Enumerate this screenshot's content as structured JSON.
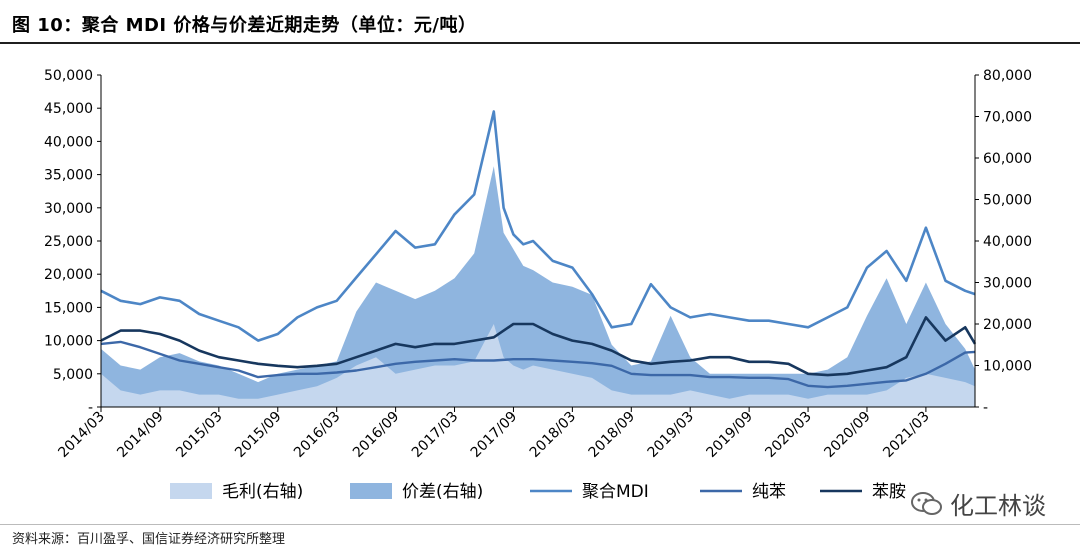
{
  "header": {
    "title": "图 10：聚合 MDI 价格与价差近期走势（单位：元/吨）"
  },
  "footer": {
    "source": "资料来源：百川盈孚、国信证券经济研究所整理",
    "watermark": "化工林谈"
  },
  "chart_data": {
    "type": "line",
    "left_axis": {
      "ticks": [
        "-",
        "5,000",
        "10,000",
        "15,000",
        "20,000",
        "25,000",
        "30,000",
        "35,000",
        "40,000",
        "45,000",
        "50,000"
      ],
      "ylim": [
        0,
        50000
      ]
    },
    "right_axis": {
      "ticks": [
        "-",
        "10,000",
        "20,000",
        "30,000",
        "40,000",
        "50,000",
        "60,000",
        "70,000",
        "80,000"
      ],
      "ylim": [
        0,
        80000
      ]
    },
    "x_ticks": [
      "2014/03",
      "2014/09",
      "2015/03",
      "2015/09",
      "2016/03",
      "2016/09",
      "2017/03",
      "2017/09",
      "2018/03",
      "2018/09",
      "2019/03",
      "2019/09",
      "2020/03",
      "2020/09",
      "2021/03"
    ],
    "x_range_months": [
      0,
      89
    ],
    "legend": [
      "毛利(右轴)",
      "价差(右轴)",
      "聚合MDI",
      "纯苯",
      "苯胺"
    ],
    "colors": {
      "毛利": "#c5d7ee",
      "价差": "#8fb5df",
      "聚合MDI": "#4d86c6",
      "纯苯": "#3c68a8",
      "苯胺": "#17375e"
    },
    "series": [
      {
        "name": "毛利(右轴)",
        "axis": "right",
        "type": "area",
        "x": [
          0,
          2,
          4,
          6,
          8,
          10,
          12,
          14,
          16,
          18,
          20,
          22,
          24,
          26,
          28,
          30,
          32,
          34,
          36,
          38,
          40,
          41,
          42,
          43,
          44,
          46,
          48,
          50,
          52,
          54,
          56,
          58,
          60,
          62,
          64,
          66,
          68,
          70,
          72,
          74,
          76,
          78,
          80,
          82,
          84,
          86,
          88,
          89
        ],
        "values": [
          8000,
          4000,
          3000,
          4000,
          4000,
          3000,
          3000,
          2000,
          2000,
          3000,
          4000,
          5000,
          7000,
          10000,
          12000,
          8000,
          9000,
          10000,
          10000,
          11000,
          20000,
          12000,
          10000,
          9000,
          10000,
          9000,
          8000,
          7000,
          4000,
          3000,
          3000,
          3000,
          4000,
          3000,
          2000,
          3000,
          3000,
          3000,
          2000,
          3000,
          3000,
          3000,
          4000,
          7000,
          8000,
          7000,
          6000,
          5000
        ]
      },
      {
        "name": "价差(右轴)",
        "axis": "right",
        "type": "area",
        "x": [
          0,
          2,
          4,
          6,
          8,
          10,
          12,
          14,
          16,
          18,
          20,
          22,
          24,
          26,
          28,
          30,
          32,
          34,
          36,
          38,
          40,
          41,
          42,
          43,
          44,
          46,
          48,
          50,
          52,
          54,
          56,
          58,
          60,
          62,
          64,
          66,
          68,
          70,
          72,
          74,
          76,
          78,
          80,
          82,
          84,
          86,
          88,
          89
        ],
        "values": [
          14000,
          10000,
          9000,
          12000,
          13000,
          11000,
          10000,
          8000,
          6000,
          8000,
          9000,
          10000,
          11000,
          23000,
          30000,
          28000,
          26000,
          28000,
          31000,
          37000,
          58000,
          42000,
          38000,
          34000,
          33000,
          30000,
          29000,
          27000,
          15000,
          10000,
          11000,
          22000,
          12000,
          8000,
          8000,
          8000,
          8000,
          8000,
          8000,
          9000,
          12000,
          22000,
          31000,
          20000,
          30000,
          20000,
          14000,
          9000
        ]
      },
      {
        "name": "聚合MDI",
        "axis": "left",
        "x": [
          0,
          2,
          4,
          6,
          8,
          10,
          12,
          14,
          16,
          18,
          20,
          22,
          24,
          26,
          28,
          30,
          32,
          34,
          36,
          38,
          40,
          41,
          42,
          43,
          44,
          46,
          48,
          50,
          52,
          54,
          56,
          58,
          60,
          62,
          64,
          66,
          68,
          70,
          72,
          74,
          76,
          78,
          80,
          82,
          84,
          86,
          88,
          89
        ],
        "values": [
          17500,
          16000,
          15500,
          16500,
          16000,
          14000,
          13000,
          12000,
          10000,
          11000,
          13500,
          15000,
          16000,
          19500,
          23000,
          26500,
          24000,
          24500,
          29000,
          32000,
          44500,
          30000,
          26000,
          24500,
          25000,
          22000,
          21000,
          17000,
          12000,
          12500,
          18500,
          15000,
          13500,
          14000,
          13500,
          13000,
          13000,
          12500,
          12000,
          13500,
          15000,
          21000,
          23500,
          19000,
          27000,
          19000,
          17500,
          17000
        ]
      },
      {
        "name": "纯苯",
        "axis": "left",
        "x": [
          0,
          2,
          4,
          6,
          8,
          10,
          12,
          14,
          16,
          18,
          20,
          22,
          24,
          26,
          28,
          30,
          32,
          34,
          36,
          38,
          40,
          42,
          44,
          46,
          48,
          50,
          52,
          54,
          56,
          58,
          60,
          62,
          64,
          66,
          68,
          70,
          72,
          74,
          76,
          78,
          80,
          82,
          84,
          86,
          88,
          89
        ],
        "values": [
          9500,
          9800,
          9000,
          8000,
          7000,
          6500,
          6000,
          5500,
          4500,
          4800,
          5000,
          5000,
          5200,
          5500,
          6000,
          6500,
          6800,
          7000,
          7200,
          7000,
          7000,
          7200,
          7200,
          7000,
          6800,
          6600,
          6200,
          5000,
          4800,
          4800,
          4800,
          4500,
          4500,
          4400,
          4400,
          4200,
          3200,
          3000,
          3200,
          3500,
          3800,
          4000,
          5000,
          6500,
          8200,
          8300
        ]
      },
      {
        "name": "苯胺",
        "axis": "left",
        "x": [
          0,
          2,
          4,
          6,
          8,
          10,
          12,
          14,
          16,
          18,
          20,
          22,
          24,
          26,
          28,
          30,
          32,
          34,
          36,
          38,
          40,
          42,
          44,
          46,
          48,
          50,
          52,
          54,
          56,
          58,
          60,
          62,
          64,
          66,
          68,
          70,
          72,
          74,
          76,
          78,
          80,
          82,
          84,
          86,
          88,
          89
        ],
        "values": [
          10000,
          11500,
          11500,
          11000,
          10000,
          8500,
          7500,
          7000,
          6500,
          6200,
          6000,
          6200,
          6500,
          7500,
          8500,
          9500,
          9000,
          9500,
          9500,
          10000,
          10500,
          12500,
          12500,
          11000,
          10000,
          9500,
          8500,
          7000,
          6500,
          6800,
          7000,
          7500,
          7500,
          6800,
          6800,
          6500,
          5000,
          4800,
          5000,
          5500,
          6000,
          7500,
          13500,
          10000,
          12000,
          9500
        ]
      }
    ]
  }
}
